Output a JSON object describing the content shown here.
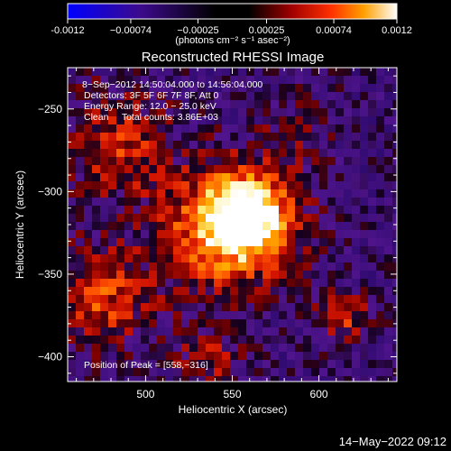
{
  "colorbar": {
    "ticks": [
      "-0.0012",
      "−0.00074",
      "−0.00025",
      "0.00025",
      "0.00074",
      "0.0012"
    ],
    "tick_values": [
      -0.0012,
      -0.00074,
      -0.00025,
      0.00025,
      0.00074,
      0.0012
    ],
    "range": [
      -0.0012,
      0.0012
    ],
    "units_label": "(photons cm⁻² s⁻¹ asec⁻²)"
  },
  "chart_data": {
    "type": "heatmap",
    "title": "Reconstructed RHESSI Image",
    "xlabel": "Heliocentric X (arcsec)",
    "ylabel": "Heliocentric Y (arcsec)",
    "xlim": [
      455,
      645
    ],
    "ylim": [
      -415,
      -225
    ],
    "x_ticks": [
      {
        "value": 500,
        "label": "500"
      },
      {
        "value": 550,
        "label": "550"
      },
      {
        "value": 600,
        "label": "600"
      }
    ],
    "y_ticks": [
      {
        "value": -250,
        "label": "−250"
      },
      {
        "value": -300,
        "label": "−300"
      },
      {
        "value": -350,
        "label": "−350"
      },
      {
        "value": -400,
        "label": "−400"
      }
    ],
    "peak": {
      "x": 558,
      "y": -316
    },
    "annotations": [
      "8−Sep−2012 14:50:04.000 to 14:56:04.000",
      "Detectors: 3F 5F 6F 7F 8F, Att 0",
      "Energy Range: 12.0 − 25.0 keV",
      "Clean     Total counts: 3.86E+03"
    ],
    "peak_label": "Position of Peak = [558,−316]"
  },
  "footer": {
    "timestamp": "14−May−2022 09:12"
  },
  "colors": {
    "background": "#000000",
    "foreground": "#ffffff",
    "colormap": [
      "#0000ff",
      "#3c0a8c",
      "#000000",
      "#8c0000",
      "#ff2800",
      "#ffa000",
      "#ffffff"
    ]
  }
}
